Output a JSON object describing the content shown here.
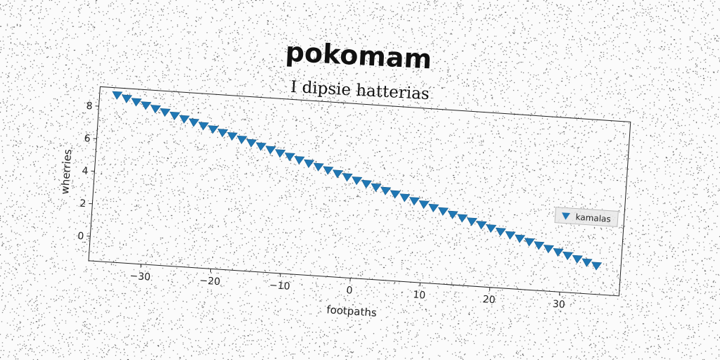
{
  "chart_data": {
    "type": "scatter",
    "title": "pokomam",
    "subtitle": "I dipsie hatterias",
    "xlabel": "footpaths",
    "ylabel": "wherries",
    "xlim": [
      -37.5,
      38.5
    ],
    "ylim": [
      -1.5,
      9.2
    ],
    "xticks": [
      -30,
      -20,
      -10,
      0,
      10,
      20,
      30
    ],
    "yticks": [
      0,
      2,
      4,
      6,
      8
    ],
    "legend_position": "center-right",
    "grid": false,
    "series": [
      {
        "name": "kamalas",
        "color": "#1f77b4",
        "marker": "triangle-down",
        "x": [
          -35,
          -33.6,
          -32.2,
          -30.8,
          -29.4,
          -28,
          -26.6,
          -25.2,
          -23.8,
          -22.4,
          -21,
          -19.6,
          -18.2,
          -16.8,
          -15.4,
          -14,
          -12.6,
          -11.2,
          -9.8,
          -8.4,
          -7,
          -5.6,
          -4.2,
          -2.8,
          -1.4,
          0,
          1.4,
          2.8,
          4.2,
          5.6,
          7,
          8.4,
          9.8,
          11.2,
          12.6,
          14,
          15.4,
          16.8,
          18.2,
          19.6,
          21,
          22.4,
          23.8,
          25.2,
          26.6,
          28,
          29.4,
          30.8,
          32.2,
          33.6,
          35
        ],
        "y": [
          8.78,
          8.61,
          8.44,
          8.27,
          8.1,
          7.93,
          7.76,
          7.59,
          7.42,
          7.25,
          7.08,
          6.91,
          6.74,
          6.57,
          6.4,
          6.23,
          6.06,
          5.89,
          5.72,
          5.55,
          5.38,
          5.21,
          5.04,
          4.87,
          4.7,
          4.53,
          4.36,
          4.19,
          4.02,
          3.85,
          3.68,
          3.51,
          3.34,
          3.17,
          3.0,
          2.83,
          2.66,
          2.49,
          2.32,
          2.15,
          1.98,
          1.81,
          1.64,
          1.47,
          1.3,
          1.13,
          0.96,
          0.79,
          0.62,
          0.45,
          0.28
        ]
      }
    ]
  }
}
